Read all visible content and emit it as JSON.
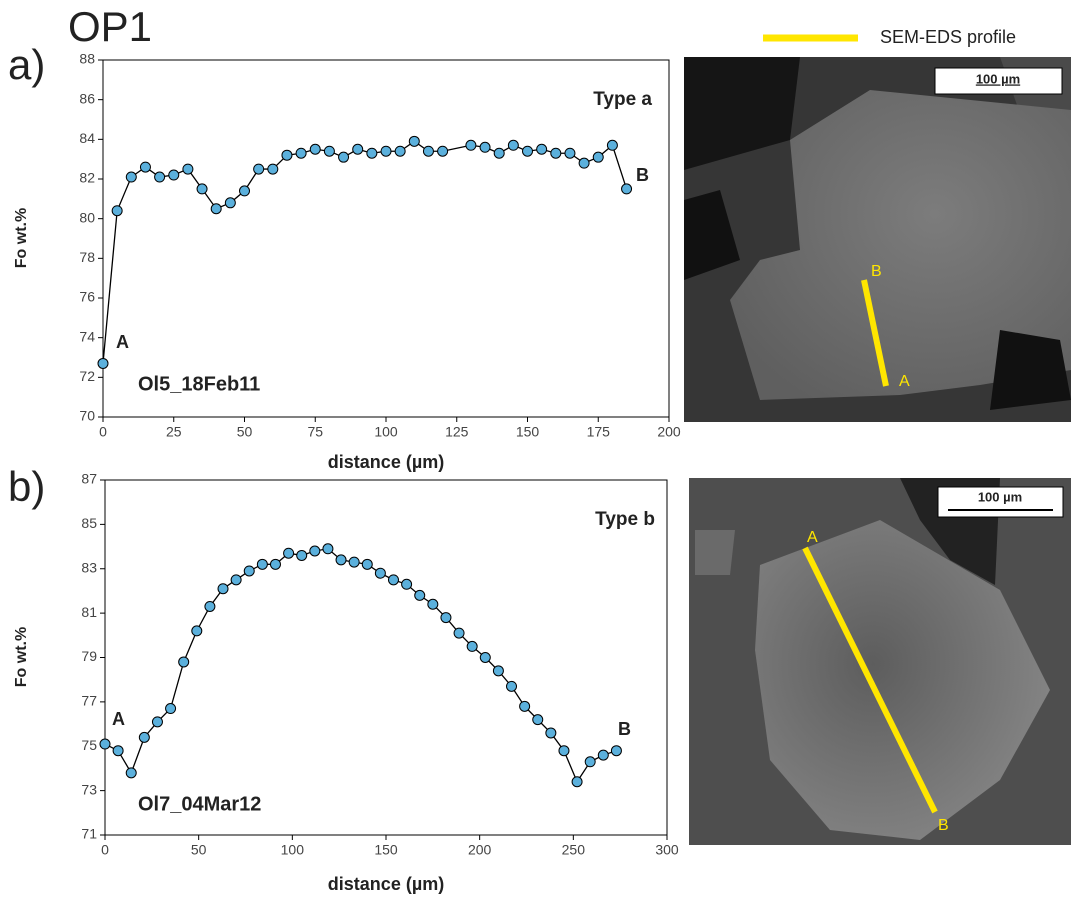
{
  "figure": {
    "title": "OP1",
    "legend": "SEM-EDS profile",
    "panels": [
      "a)",
      "b)"
    ],
    "images": [
      {
        "scale_bar": "100 µm",
        "start": "A",
        "end": "B"
      },
      {
        "scale_bar": "100 µm",
        "start": "A",
        "end": "B"
      }
    ]
  },
  "chart_data": [
    {
      "type": "line",
      "xlabel": "distance (µm)",
      "ylabel": "Fo wt.%",
      "label": "Type a",
      "sample": "Ol5_18Feb11",
      "start_label": "A",
      "end_label": "B",
      "x": [
        0,
        5,
        10,
        15,
        20,
        25,
        30,
        35,
        40,
        45,
        50,
        55,
        60,
        65,
        70,
        75,
        80,
        85,
        90,
        95,
        100,
        105,
        110,
        115,
        120,
        130,
        135,
        140,
        145,
        150,
        155,
        160,
        165,
        170,
        175,
        180,
        185
      ],
      "values": [
        72.7,
        80.4,
        82.1,
        82.6,
        82.1,
        82.2,
        82.5,
        81.5,
        80.5,
        80.8,
        81.4,
        82.5,
        82.5,
        83.2,
        83.3,
        83.5,
        83.4,
        83.1,
        83.5,
        83.3,
        83.4,
        83.4,
        83.9,
        83.4,
        83.4,
        83.7,
        83.6,
        83.3,
        83.7,
        83.4,
        83.5,
        83.3,
        83.3,
        82.8,
        83.1,
        83.7,
        81.5
      ],
      "color": "#5bb0dc",
      "line_color": "#000000",
      "xlim": [
        0,
        200
      ],
      "xticks": [
        0,
        25,
        50,
        75,
        100,
        125,
        150,
        175,
        200
      ],
      "ylim": [
        70,
        88
      ],
      "yticks": [
        70,
        72,
        74,
        76,
        78,
        80,
        82,
        84,
        86,
        88
      ]
    },
    {
      "type": "line",
      "xlabel": "distance (µm)",
      "ylabel": "Fo wt.%",
      "label": "Type b",
      "sample": "Ol7_04Mar12",
      "start_label": "A",
      "end_label": "B",
      "x": [
        0,
        7,
        14,
        21,
        28,
        35,
        42,
        49,
        56,
        63,
        70,
        77,
        84,
        91,
        98,
        105,
        112,
        119,
        126,
        133,
        140,
        147,
        154,
        161,
        168,
        175,
        182,
        189,
        196,
        203,
        210,
        217,
        224,
        231,
        238,
        245,
        252,
        259,
        266,
        273
      ],
      "values": [
        75.1,
        74.8,
        73.8,
        75.4,
        76.1,
        76.7,
        78.8,
        80.2,
        81.3,
        82.1,
        82.5,
        82.9,
        83.2,
        83.2,
        83.7,
        83.6,
        83.8,
        83.9,
        83.4,
        83.3,
        83.2,
        82.8,
        82.5,
        82.3,
        81.8,
        81.4,
        80.8,
        80.1,
        79.5,
        79.0,
        78.4,
        77.7,
        76.8,
        76.2,
        75.6,
        74.8,
        73.4,
        74.3,
        74.6,
        74.8
      ],
      "color": "#5bb0dc",
      "line_color": "#000000",
      "xlim": [
        0,
        300
      ],
      "xticks": [
        0,
        50,
        100,
        150,
        200,
        250,
        300
      ],
      "ylim": [
        71,
        87
      ],
      "yticks": [
        71,
        73,
        75,
        77,
        79,
        81,
        83,
        85,
        87
      ]
    }
  ]
}
